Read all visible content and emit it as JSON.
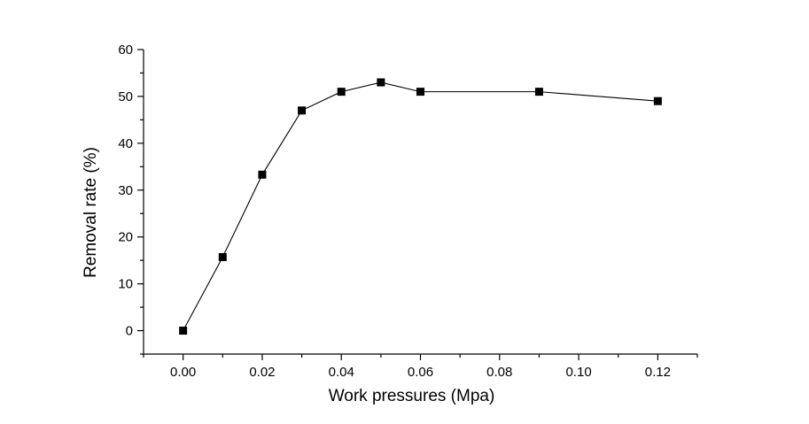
{
  "chart_data": {
    "type": "line",
    "title": "",
    "xlabel": "Work pressures (Mpa)",
    "ylabel": "Removal rate (%)",
    "xlim": [
      -0.01,
      0.13
    ],
    "ylim": [
      -5,
      60
    ],
    "x_ticks": [
      "0.00",
      "0.02",
      "0.04",
      "0.06",
      "0.08",
      "0.10",
      "0.12"
    ],
    "y_ticks": [
      "0",
      "10",
      "20",
      "30",
      "40",
      "50",
      "60"
    ],
    "grid": false,
    "legend": "none",
    "marker": "square",
    "series": [
      {
        "x": [
          0.0,
          0.01,
          0.02,
          0.03,
          0.04,
          0.05,
          0.06,
          0.09,
          0.12
        ],
        "y": [
          0,
          15.7,
          33.3,
          47,
          51,
          53,
          51,
          51,
          49
        ]
      }
    ],
    "colors": {
      "line": "#000000",
      "marker": "#000000",
      "axis": "#000000"
    }
  }
}
